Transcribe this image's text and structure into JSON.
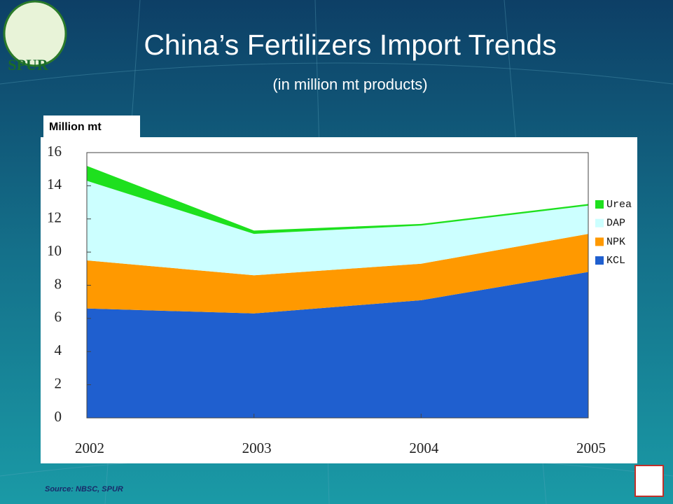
{
  "logo": "SPUR",
  "chart_data": {
    "type": "stacked-area",
    "title": "China’s Fertilizers Import Trends",
    "subtitle": "(in million mt products)",
    "y_label": "Million mt",
    "source": "Source: NBSC, SPUR",
    "x": [
      2002,
      2003,
      2004,
      2005
    ],
    "xlim": [
      2002,
      2005
    ],
    "xticks": [
      2002,
      2003,
      2004,
      2005
    ],
    "ylim": [
      0,
      16
    ],
    "yticks": [
      0,
      2,
      4,
      6,
      8,
      10,
      12,
      14,
      16
    ],
    "grid": false,
    "legend": "right",
    "series": [
      {
        "name": "KCL",
        "color": "#1f5fcf",
        "values": [
          6.6,
          6.3,
          7.1,
          8.8
        ]
      },
      {
        "name": "NPK",
        "color": "#ff9900",
        "values": [
          2.9,
          2.3,
          2.2,
          2.3
        ]
      },
      {
        "name": "DAP",
        "color": "#ccffff",
        "values": [
          4.8,
          2.5,
          2.3,
          1.7
        ]
      },
      {
        "name": "Urea",
        "color": "#1ee01e",
        "values": [
          0.9,
          0.2,
          0.1,
          0.1
        ]
      }
    ]
  }
}
